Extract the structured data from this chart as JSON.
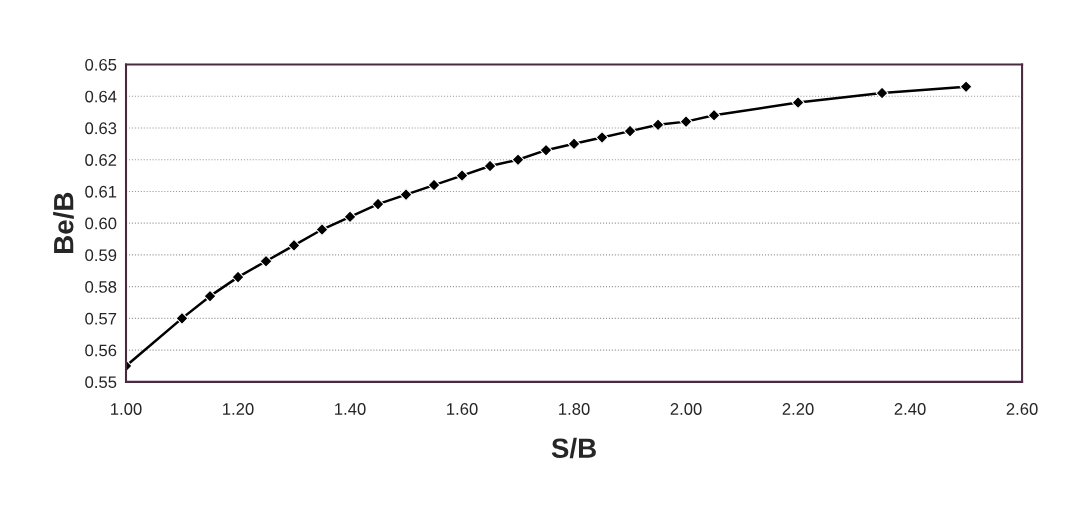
{
  "chart_data": {
    "type": "line",
    "xlabel": "S/B",
    "ylabel": "Be/B",
    "x": [
      1.0,
      1.1,
      1.15,
      1.2,
      1.25,
      1.3,
      1.35,
      1.4,
      1.45,
      1.5,
      1.55,
      1.6,
      1.65,
      1.7,
      1.75,
      1.8,
      1.85,
      1.9,
      1.95,
      2.0,
      2.05,
      2.2,
      2.35,
      2.5
    ],
    "series": [
      {
        "color": "#000000",
        "values": [
          0.555,
          0.57,
          0.577,
          0.583,
          0.588,
          0.593,
          0.598,
          0.602,
          0.606,
          0.609,
          0.612,
          0.615,
          0.618,
          0.62,
          0.623,
          0.625,
          0.627,
          0.629,
          0.631,
          0.632,
          0.634,
          0.638,
          0.641,
          0.643
        ]
      }
    ],
    "xlim": [
      1.0,
      2.6
    ],
    "ylim": [
      0.55,
      0.65
    ],
    "xticks": [
      {
        "value": 1.0,
        "label": "1.00"
      },
      {
        "value": 1.2,
        "label": "1.20"
      },
      {
        "value": 1.4,
        "label": "1.40"
      },
      {
        "value": 1.6,
        "label": "1.60"
      },
      {
        "value": 1.8,
        "label": "1.80"
      },
      {
        "value": 2.0,
        "label": "2.00"
      },
      {
        "value": 2.2,
        "label": "2.20"
      },
      {
        "value": 2.4,
        "label": "2.40"
      },
      {
        "value": 2.6,
        "label": "2.60"
      }
    ],
    "yticks": [
      0.55,
      0.56,
      0.57,
      0.58,
      0.59,
      {
        "value": 0.6,
        "label": "0.60"
      },
      0.61,
      0.62,
      0.63,
      0.64,
      0.65
    ],
    "grid": "y",
    "marker": "diamond",
    "line_style": "solid",
    "legend": false
  }
}
